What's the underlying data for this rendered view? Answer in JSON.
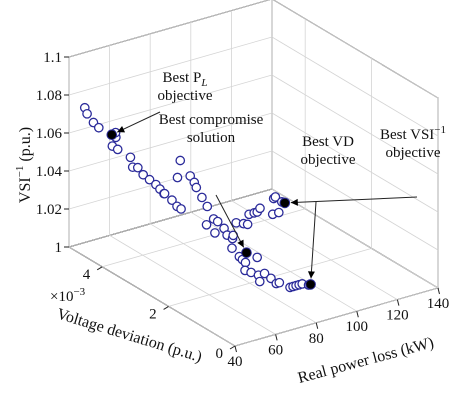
{
  "chart_data": {
    "type": "scatter",
    "title": "",
    "zlabel": "VSI",
    "zlabel_sup": "−1",
    "zlabel_unit": " (p.u.)",
    "xlabel": "Real power loss (kW)",
    "ylabel": "Voltage deviation (p.u.)",
    "y_exponent_base": "×10",
    "y_exponent_power": "−3",
    "x_ticks": [
      "40",
      "60",
      "80",
      "100",
      "120",
      "140"
    ],
    "y_ticks": [
      "0",
      "2",
      "4"
    ],
    "z_ticks": [
      "1",
      "1.02",
      "1.04",
      "1.06",
      "1.08",
      "1.1"
    ],
    "xlim": [
      40,
      140
    ],
    "ylim": [
      0,
      0.005
    ],
    "zlim": [
      1.0,
      1.1
    ],
    "grid": true,
    "colors": {
      "marker_stroke": "#2b2b9a",
      "marker_fill": "#ffffff",
      "highlight": "#000000",
      "grid": "#d4d4d4"
    },
    "points": [
      {
        "x": 44.5,
        "y": 0.0048,
        "z": 1.074
      },
      {
        "x": 44.0,
        "y": 0.0047,
        "z": 1.072
      },
      {
        "x": 45.5,
        "y": 0.0046,
        "z": 1.068
      },
      {
        "x": 46.5,
        "y": 0.0045,
        "z": 1.066
      },
      {
        "x": 45.0,
        "y": 0.004,
        "z": 1.062
      },
      {
        "x": 46.0,
        "y": 0.0039,
        "z": 1.061
      },
      {
        "x": 50.0,
        "y": 0.0042,
        "z": 1.063
      },
      {
        "x": 51.5,
        "y": 0.0043,
        "z": 1.064
      },
      {
        "x": 49.0,
        "y": 0.0037,
        "z": 1.058
      },
      {
        "x": 48.5,
        "y": 0.0036,
        "z": 1.054
      },
      {
        "x": 51.0,
        "y": 0.0036,
        "z": 1.053
      },
      {
        "x": 52.0,
        "y": 0.0035,
        "z": 1.05
      },
      {
        "x": 53.5,
        "y": 0.0034,
        "z": 1.048
      },
      {
        "x": 55.0,
        "y": 0.0033,
        "z": 1.046
      },
      {
        "x": 57.0,
        "y": 0.0033,
        "z": 1.043
      },
      {
        "x": 59.0,
        "y": 0.0033,
        "z": 1.04
      },
      {
        "x": 56.0,
        "y": 0.0031,
        "z": 1.043
      },
      {
        "x": 58.0,
        "y": 0.003,
        "z": 1.04
      },
      {
        "x": 60.5,
        "y": 0.003,
        "z": 1.036
      },
      {
        "x": 62.5,
        "y": 0.003,
        "z": 1.034
      },
      {
        "x": 64.0,
        "y": 0.0032,
        "z": 1.048
      },
      {
        "x": 67.0,
        "y": 0.0033,
        "z": 1.055
      },
      {
        "x": 67.0,
        "y": 0.003,
        "z": 1.05
      },
      {
        "x": 69.0,
        "y": 0.003,
        "z": 1.046
      },
      {
        "x": 70.0,
        "y": 0.003,
        "z": 1.043
      },
      {
        "x": 69.5,
        "y": 0.0028,
        "z": 1.04
      },
      {
        "x": 70.5,
        "y": 0.0027,
        "z": 1.036
      },
      {
        "x": 68.5,
        "y": 0.0026,
        "z": 1.028
      },
      {
        "x": 71.0,
        "y": 0.0025,
        "z": 1.024
      },
      {
        "x": 72.0,
        "y": 0.0026,
        "z": 1.03
      },
      {
        "x": 74.0,
        "y": 0.0026,
        "z": 1.028
      },
      {
        "x": 75.5,
        "y": 0.0025,
        "z": 1.025
      },
      {
        "x": 77.0,
        "y": 0.0025,
        "z": 1.021
      },
      {
        "x": 74.5,
        "y": 0.0022,
        "z": 1.018
      },
      {
        "x": 76.5,
        "y": 0.0021,
        "z": 1.014
      },
      {
        "x": 78.0,
        "y": 0.0021,
        "z": 1.012
      },
      {
        "x": 79.5,
        "y": 0.0021,
        "z": 1.01
      },
      {
        "x": 76.0,
        "y": 0.0019,
        "z": 1.009
      },
      {
        "x": 79.0,
        "y": 0.0019,
        "z": 1.007
      },
      {
        "x": 81.0,
        "y": 0.0018,
        "z": 1.006
      },
      {
        "x": 80.0,
        "y": 0.0017,
        "z": 1.004
      },
      {
        "x": 82.0,
        "y": 0.0019,
        "z": 1.014
      },
      {
        "x": 84.0,
        "y": 0.0018,
        "z": 1.006
      },
      {
        "x": 85.5,
        "y": 0.0017,
        "z": 1.004
      },
      {
        "x": 86.5,
        "y": 0.0016,
        "z": 1.002
      },
      {
        "x": 88.0,
        "y": 0.0016,
        "z": 1.002
      },
      {
        "x": 90.0,
        "y": 0.0014,
        "z": 1.001
      },
      {
        "x": 91.5,
        "y": 0.0014,
        "z": 1.001
      },
      {
        "x": 93.0,
        "y": 0.0014,
        "z": 1.001
      },
      {
        "x": 94.5,
        "y": 0.0014,
        "z": 1.001
      },
      {
        "x": 96.0,
        "y": 0.0014,
        "z": 1.001
      },
      {
        "x": 97.5,
        "y": 0.0013,
        "z": 1.001
      },
      {
        "x": 96.0,
        "y": 0.0035,
        "z": 1.003
      },
      {
        "x": 98.0,
        "y": 0.0036,
        "z": 1.003
      },
      {
        "x": 106.0,
        "y": 0.004,
        "z": 1.003
      },
      {
        "x": 108.0,
        "y": 0.0039,
        "z": 1.003
      },
      {
        "x": 110.0,
        "y": 0.0039,
        "z": 1.002
      },
      {
        "x": 114.0,
        "y": 0.0041,
        "z": 1.004
      },
      {
        "x": 116.5,
        "y": 0.0041,
        "z": 1.004
      },
      {
        "x": 118.0,
        "y": 0.0041,
        "z": 1.004
      },
      {
        "x": 121.0,
        "y": 0.0042,
        "z": 1.004
      },
      {
        "x": 124.0,
        "y": 0.004,
        "z": 1.002
      },
      {
        "x": 127.0,
        "y": 0.004,
        "z": 1.002
      },
      {
        "x": 131.0,
        "y": 0.0044,
        "z": 1.004
      },
      {
        "x": 133.5,
        "y": 0.0045,
        "z": 1.003
      },
      {
        "x": 135.0,
        "y": 0.0044,
        "z": 1.001
      }
    ],
    "highlights": [
      {
        "x": 48.0,
        "y": 0.0042,
        "z": 1.065,
        "label": [
          "Best P",
          "L",
          " objective"
        ]
      },
      {
        "x": 80.0,
        "y": 0.0021,
        "z": 1.015,
        "label": [
          "Best compromise",
          "solution"
        ]
      },
      {
        "x": 98.5,
        "y": 0.0013,
        "z": 1.001,
        "label": [
          "Best VD",
          "objective"
        ]
      },
      {
        "x": 136.5,
        "y": 0.0044,
        "z": 1.0,
        "label": [
          "Best VSI",
          "−1",
          "objective"
        ]
      }
    ]
  }
}
